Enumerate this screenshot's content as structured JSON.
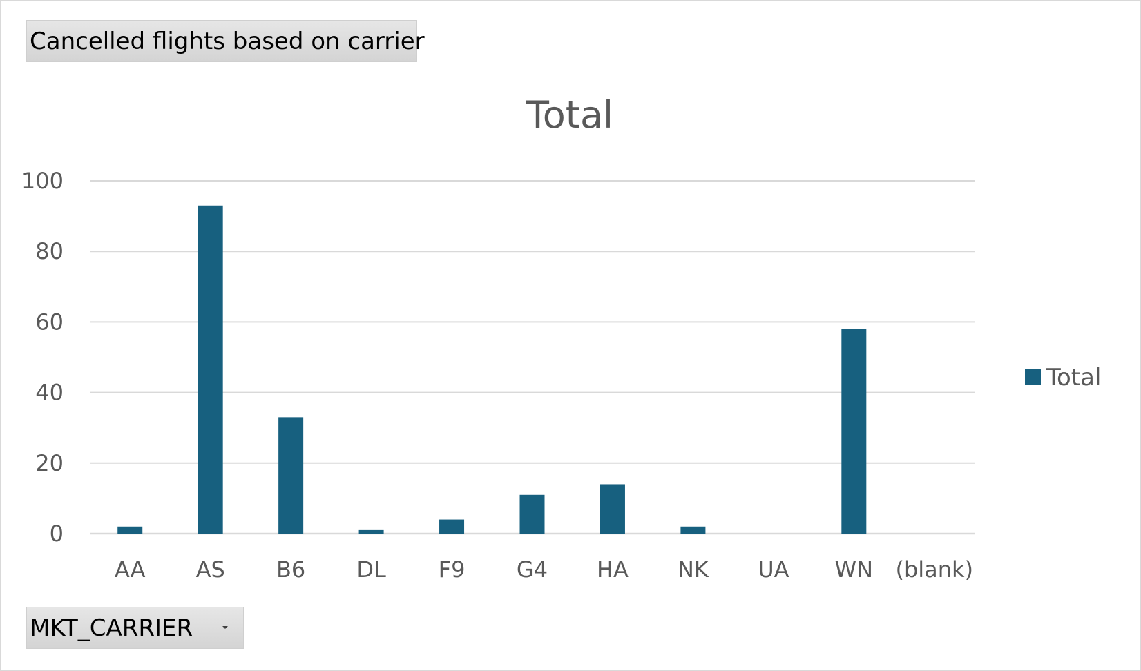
{
  "pivot": {
    "value_field_button": "Cancelled flights based on carrier",
    "axis_field_button": "MKT_CARRIER"
  },
  "colors": {
    "bar": "#17607f",
    "gridline": "#d9d9d9",
    "text": "#595959"
  },
  "chart_data": {
    "type": "bar",
    "title": "Total",
    "xlabel": "",
    "ylabel": "",
    "categories": [
      "AA",
      "AS",
      "B6",
      "DL",
      "F9",
      "G4",
      "HA",
      "NK",
      "UA",
      "WN",
      "(blank)"
    ],
    "series": [
      {
        "name": "Total",
        "values": [
          2,
          93,
          33,
          1,
          4,
          11,
          14,
          2,
          0,
          58,
          0
        ]
      }
    ],
    "ylim": [
      0,
      100
    ],
    "yticks": [
      0,
      20,
      40,
      60,
      80,
      100
    ],
    "grid": true,
    "legend": "right"
  }
}
